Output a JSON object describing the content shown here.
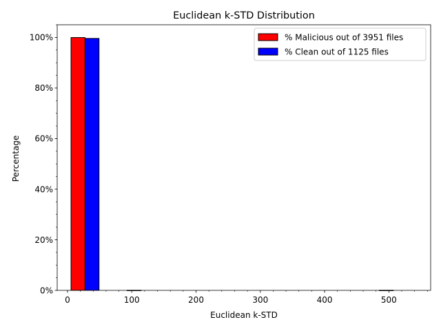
{
  "chart_data": {
    "type": "bar",
    "title": "Euclidean k-STD Distribution",
    "xlabel": "Euclidean k-STD",
    "ylabel": "Percentage",
    "xlim": [
      -16,
      565
    ],
    "ylim": [
      0,
      105
    ],
    "x_ticks": [
      0,
      100,
      200,
      300,
      400,
      500
    ],
    "x_minor_step": 20,
    "y_ticks": [
      0,
      20,
      40,
      60,
      80,
      100
    ],
    "y_tick_labels": [
      "0%",
      "20%",
      "40%",
      "60%",
      "80%",
      "100%"
    ],
    "y_minor_step": 5,
    "grid": false,
    "legend_position": "top-right",
    "bin_width": 43.6,
    "bin_starts": [
      5.5,
      49.1,
      92.7,
      136.3,
      179.9,
      223.5,
      267.1,
      310.7,
      354.3,
      397.9,
      441.5,
      485.1
    ],
    "series": [
      {
        "name": "% Malicious out of 3951 files",
        "color": "#ff0000",
        "values": [
          99.95,
          0,
          0.03,
          0,
          0,
          0,
          0,
          0,
          0,
          0,
          0,
          0.03
        ]
      },
      {
        "name": "% Clean out of 1125 files",
        "color": "#0000ff",
        "values": [
          99.6,
          0,
          0,
          0,
          0,
          0,
          0,
          0,
          0,
          0,
          0,
          0
        ]
      }
    ]
  }
}
